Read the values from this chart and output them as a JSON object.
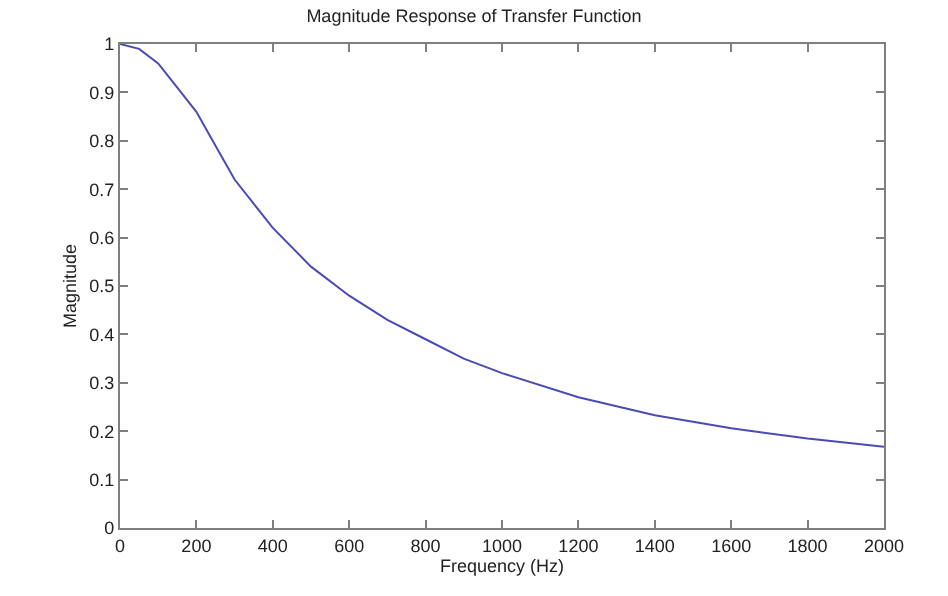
{
  "chart_data": {
    "type": "line",
    "title": "Magnitude Response of Transfer Function",
    "xlabel": "Frequency (Hz)",
    "ylabel": "Magnitude",
    "x": [
      0,
      50,
      100,
      150,
      200,
      250,
      300,
      400,
      500,
      600,
      700,
      800,
      900,
      1000,
      1200,
      1400,
      1600,
      1800,
      2000
    ],
    "series": [
      {
        "color": "#4b4bb4",
        "values": [
          1,
          0.99,
          0.96,
          0.91,
          0.86,
          0.79,
          0.72,
          0.62,
          0.54,
          0.48,
          0.43,
          0.39,
          0.35,
          0.32,
          0.27,
          0.233,
          0.206,
          0.185,
          0.168
        ]
      }
    ],
    "xlim": [
      0,
      2000
    ],
    "xticks": [
      0,
      200,
      400,
      600,
      800,
      1000,
      1200,
      1400,
      1600,
      1800,
      2000
    ],
    "ylim": [
      0,
      1
    ],
    "yticks": [
      0,
      0.1,
      0.2,
      0.3,
      0.4,
      0.5,
      0.6,
      0.7,
      0.8,
      0.9,
      1
    ],
    "marker": "none",
    "line_style": "solid"
  }
}
